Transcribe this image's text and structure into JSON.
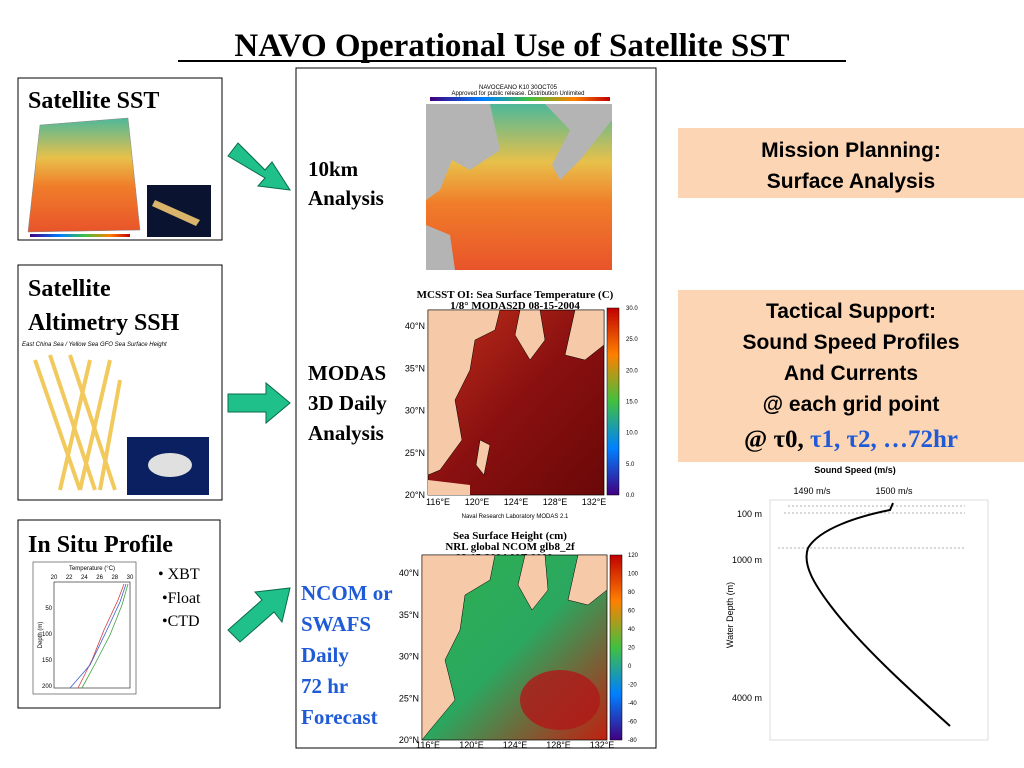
{
  "title": "NAVO Operational Use of Satellite SST",
  "sources": [
    {
      "lines": [
        "Satellite SST"
      ]
    },
    {
      "lines": [
        "Satellite",
        "Altimetry SSH"
      ],
      "caption": "East China Sea / Yellow Sea GFO Sea Surface Height"
    },
    {
      "lines": [
        "In Situ Profile"
      ],
      "items": [
        "• XBT",
        "•Float",
        "•CTD"
      ],
      "chart": {
        "xlabel": "Temperature (°C)",
        "xticks": [
          "20",
          "22",
          "24",
          "26",
          "28",
          "30"
        ],
        "ylabel": "Depth (m)",
        "yticks": [
          "50",
          "100",
          "150",
          "200"
        ]
      }
    }
  ],
  "products": [
    {
      "lines": [
        "10km",
        "Analysis"
      ]
    },
    {
      "lines": [
        "MODAS",
        "3D Daily",
        "Analysis"
      ]
    },
    {
      "lines": [
        "NCOM or",
        "SWAFS",
        "Daily",
        "72 hr",
        "Forecast"
      ]
    }
  ],
  "maps": [
    {
      "titles": [
        "NAVOCEANO K10 30OCT05",
        "Approved for public release. Distribution Unlimited"
      ]
    },
    {
      "titles": [
        "MCSST OI:  Sea Surface Temperature (C)",
        "1/8° MODAS2D 08-15-2004"
      ],
      "colorbar": [
        "30.0",
        "25.0",
        "20.0",
        "15.0",
        "10.0",
        "5.0",
        "0.0"
      ],
      "lat": [
        "40°N",
        "35°N",
        "30°N",
        "25°N",
        "20°N"
      ],
      "lon": [
        "116°E",
        "120°E",
        "124°E",
        "128°E",
        "132°E"
      ],
      "footer": "Naval Research Laboratory  MODAS 2.1"
    },
    {
      "titles": [
        "Sea Surface Height (cm)",
        "NRL global NCOM glb8_2f",
        "08-15-2004 00Z  0000 m"
      ],
      "colorbar": [
        "120",
        "100",
        "80",
        "60",
        "40",
        "20",
        "0",
        "-20",
        "-40",
        "-60",
        "-80"
      ],
      "lat": [
        "40°N",
        "35°N",
        "30°N",
        "25°N",
        "20°N"
      ],
      "lon": [
        "116°E",
        "120°E",
        "124°E",
        "128°E",
        "132°E"
      ]
    }
  ],
  "outputs": [
    {
      "lines": [
        "Mission Planning:",
        "Surface Analysis"
      ]
    },
    {
      "lines": [
        "Tactical Support:",
        "Sound Speed Profiles",
        "And Currents",
        "@ each grid point"
      ],
      "tau_black": "@ τ0, ",
      "tau_blue": "τ1, τ2, …72hr"
    }
  ],
  "sound_speed": {
    "title": "Sound Speed (m/s)",
    "xticks": [
      "1490 m/s",
      "1500 m/s"
    ],
    "yticks": [
      "100 m",
      "1000 m",
      "4000 m"
    ],
    "ylabel": "Water Depth (m)"
  }
}
